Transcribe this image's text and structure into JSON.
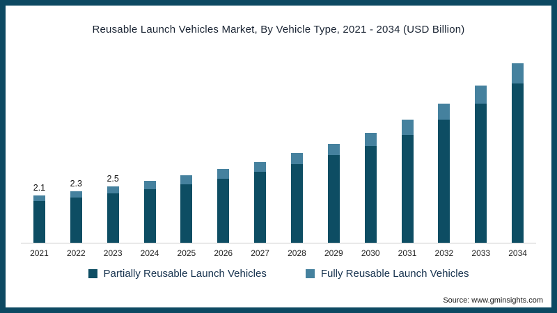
{
  "frame": {
    "border_color": "#0d4962"
  },
  "title": "Reusable Launch Vehicles Market, By Vehicle Type, 2021 - 2034 (USD Billion)",
  "source": "Source: www.gminsights.com",
  "legend": [
    {
      "label": "Partially Reusable Launch Vehicles",
      "color": "#0d4d63"
    },
    {
      "label": "Fully Reusable Launch Vehicles",
      "color": "#45819e"
    }
  ],
  "chart_data": {
    "type": "bar",
    "stacked": true,
    "title": "Reusable Launch Vehicles Market, By Vehicle Type, 2021 - 2034 (USD Billion)",
    "xlabel": "",
    "ylabel": "USD Billion",
    "ylim": [
      0,
      8.8
    ],
    "grid": false,
    "legend_position": "bottom",
    "categories": [
      "2021",
      "2022",
      "2023",
      "2024",
      "2025",
      "2026",
      "2027",
      "2028",
      "2029",
      "2030",
      "2031",
      "2032",
      "2033",
      "2034"
    ],
    "series": [
      {
        "name": "Partially Reusable Launch Vehicles",
        "color": "#0d4d63",
        "values": [
          1.85,
          2.0,
          2.2,
          2.4,
          2.6,
          2.85,
          3.15,
          3.5,
          3.9,
          4.3,
          4.8,
          5.5,
          6.2,
          7.1
        ]
      },
      {
        "name": "Fully Reusable Launch Vehicles",
        "color": "#45819e",
        "values": [
          0.25,
          0.3,
          0.3,
          0.35,
          0.4,
          0.45,
          0.45,
          0.5,
          0.5,
          0.6,
          0.7,
          0.7,
          0.8,
          0.9
        ]
      }
    ],
    "totals": [
      2.1,
      2.3,
      2.5,
      2.75,
      3.0,
      3.3,
      3.6,
      4.0,
      4.4,
      4.9,
      5.5,
      6.2,
      7.0,
      8.0
    ],
    "data_labels": [
      "2.1",
      "2.3",
      "2.5",
      "",
      "",
      "",
      "",
      "",
      "",
      "",
      "",
      "",
      "",
      ""
    ]
  }
}
